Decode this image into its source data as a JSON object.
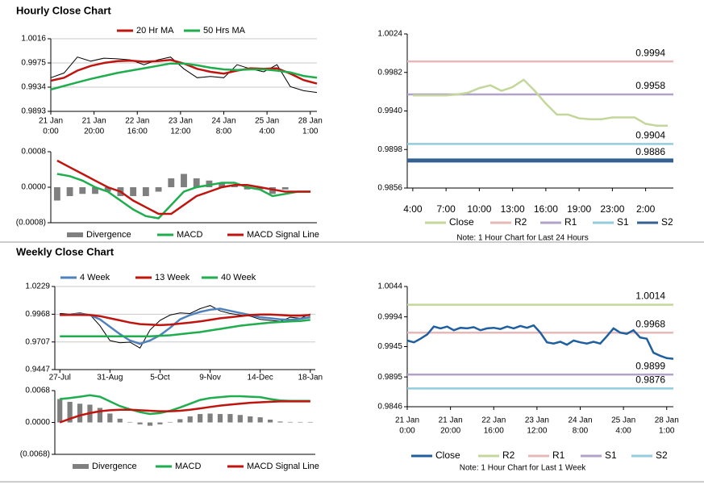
{
  "sections": [
    "Hourly Close Chart",
    "Weekly Close Chart"
  ],
  "chart_data": [
    {
      "type": "line",
      "grid": true,
      "xlim": [
        0,
        20
      ],
      "ylim": [
        0.9893,
        1.0016
      ],
      "yticks": [
        1.0016,
        0.9975,
        0.9934,
        0.9893
      ],
      "xticks": [
        {
          "value": 0,
          "label": [
            "21 Jan",
            "0:00"
          ]
        },
        {
          "value": 3.25,
          "label": [
            "21 Jan",
            "20:00"
          ]
        },
        {
          "value": 6.5,
          "label": [
            "22 Jan",
            "16:00"
          ]
        },
        {
          "value": 9.75,
          "label": [
            "23 Jan",
            "12:00"
          ]
        },
        {
          "value": 13,
          "label": [
            "24 Jan",
            "8:00"
          ]
        },
        {
          "value": 16.25,
          "label": [
            "25 Jan",
            "4:00"
          ]
        },
        {
          "value": 19.5,
          "label": [
            "28 Jan",
            "1:00"
          ]
        }
      ],
      "series": [
        {
          "color": "#000000",
          "values": [
            0.995,
            0.9958,
            0.9985,
            0.9978,
            0.9983,
            0.9982,
            0.998,
            0.9972,
            0.998,
            0.9985,
            0.9965,
            0.995,
            0.9952,
            0.995,
            0.9972,
            0.9965,
            0.996,
            0.9972,
            0.9935,
            0.9928,
            0.9925
          ]
        },
        {
          "name": "20 Hr MA",
          "color": "#c0140f",
          "values": [
            0.9945,
            0.995,
            0.9962,
            0.997,
            0.9975,
            0.9978,
            0.9979,
            0.9977,
            0.9978,
            0.998,
            0.9974,
            0.9965,
            0.996,
            0.9957,
            0.9962,
            0.9966,
            0.9965,
            0.9966,
            0.9957,
            0.9946,
            0.994
          ]
        },
        {
          "name": "50 Hrs MA",
          "color": "#1fad4e",
          "values": [
            0.993,
            0.9936,
            0.9942,
            0.9948,
            0.9953,
            0.9958,
            0.9962,
            0.9966,
            0.997,
            0.9974,
            0.9974,
            0.9971,
            0.9967,
            0.9964,
            0.9963,
            0.9964,
            0.9964,
            0.9962,
            0.9959,
            0.9953,
            0.995
          ]
        }
      ]
    },
    {
      "type": "combo",
      "grid": false,
      "ylim": [
        -0.0008,
        0.0008
      ],
      "yticks": [
        0.0008,
        {
          "value": 0,
          "label": "0.0000"
        },
        {
          "value": -0.0008,
          "label": "(0.0008)"
        }
      ],
      "series": [
        {
          "name": "Divergence",
          "type": "bar",
          "color": "#7f7f7f",
          "values": [
            -0.0003,
            -0.0002,
            -0.00015,
            -0.00015,
            -0.0001,
            -0.0002,
            -0.0002,
            -0.0002,
            -0.0001,
            0.0002,
            0.0003,
            0.0002,
            0.00015,
            0.0001,
            5e-05,
            -5e-05,
            -5e-05,
            -0.00015,
            -5e-05,
            0,
            0
          ]
        },
        {
          "name": "MACD",
          "type": "line",
          "color": "#1fad4e",
          "values": [
            0.0003,
            0.00025,
            0.00015,
            0,
            -0.0001,
            -0.0003,
            -0.0005,
            -0.00065,
            -0.0007,
            -0.0004,
            -0.0001,
            0,
            5e-05,
            0.0001,
            0.0001,
            0,
            -5e-05,
            -0.0002,
            -0.00015,
            -0.0001,
            -0.0001
          ]
        },
        {
          "name": "MACD Signal Line",
          "type": "line",
          "color": "#c0140f",
          "values": [
            0.0006,
            0.00045,
            0.0003,
            0.00015,
            0,
            -0.0001,
            -0.0003,
            -0.00045,
            -0.0006,
            -0.0006,
            -0.0004,
            -0.0002,
            -0.0001,
            0,
            5e-05,
            5e-05,
            0,
            -5e-05,
            -0.0001,
            -0.0001,
            -0.0001
          ]
        }
      ]
    },
    {
      "type": "line",
      "grid": false,
      "ylim": [
        0.9856,
        1.0024
      ],
      "yticks": [
        1.0024,
        0.9982,
        {
          "value": 0.994,
          "label": "0.9940"
        },
        0.9898,
        0.9856
      ],
      "categories": [
        "4:00",
        null,
        null,
        "7:00",
        null,
        null,
        "10:00",
        null,
        null,
        "13:00",
        null,
        null,
        "16:00",
        null,
        null,
        "19:00",
        null,
        null,
        "23:00",
        null,
        null,
        "2:00",
        null,
        null
      ],
      "series": [
        {
          "name": "Close",
          "color": "#c4d79b",
          "values": [
            0.9957,
            0.9957,
            0.9957,
            0.9957,
            0.9958,
            0.996,
            0.9965,
            0.9968,
            0.9962,
            0.9966,
            0.9974,
            0.9962,
            0.9948,
            0.9936,
            0.9936,
            0.9932,
            0.9931,
            0.9931,
            0.9933,
            0.9933,
            0.9933,
            0.9926,
            0.9924,
            0.9924
          ]
        }
      ],
      "levels": [
        {
          "name": "R2",
          "color": "#e6b9b8",
          "value": 0.9994
        },
        {
          "name": "R1",
          "color": "#b3a2c7",
          "value": 0.9958
        },
        {
          "name": "S1",
          "color": "#93cddd",
          "value": 0.9904
        },
        {
          "name": "S2",
          "color": "#376092",
          "value": 0.9886,
          "bold": true
        }
      ],
      "note": "Note: 1 Hour Chart for Last 24 Hours"
    },
    {
      "type": "line",
      "grid": true,
      "ylim": [
        0.9447,
        1.0229
      ],
      "yticks": [
        1.0229,
        0.9968,
        0.9707,
        0.9447
      ],
      "categories": [
        "27-Jul",
        null,
        null,
        null,
        null,
        "31-Aug",
        null,
        null,
        null,
        null,
        "5-Oct",
        null,
        null,
        null,
        null,
        "9-Nov",
        null,
        null,
        null,
        null,
        "14-Dec",
        null,
        null,
        null,
        null,
        "18-Jan"
      ],
      "series": [
        {
          "color": "#000000",
          "values": [
            0.9975,
            0.997,
            0.998,
            0.9965,
            0.986,
            0.972,
            0.97,
            0.9705,
            0.965,
            0.982,
            0.991,
            0.996,
            0.998,
            0.9975,
            1.002,
            1.005,
            1.0,
            0.9975,
            0.996,
            0.995,
            0.992,
            0.991,
            0.99,
            0.994,
            0.993,
            0.997
          ]
        },
        {
          "name": "4 Week",
          "color": "#4f81bd",
          "values": [
            0.996,
            0.9965,
            0.997,
            0.996,
            0.992,
            0.985,
            0.978,
            0.972,
            0.969,
            0.972,
            0.977,
            0.984,
            0.992,
            0.996,
            0.999,
            1.001,
            1.002,
            1.0,
            0.998,
            0.996,
            0.994,
            0.993,
            0.992,
            0.9915,
            0.9925,
            0.994
          ]
        },
        {
          "name": "13 Week",
          "color": "#c0140f",
          "values": [
            0.996,
            0.9962,
            0.9962,
            0.996,
            0.995,
            0.993,
            0.991,
            0.989,
            0.9875,
            0.987,
            0.9865,
            0.987,
            0.988,
            0.989,
            0.99,
            0.9915,
            0.993,
            0.994,
            0.995,
            0.996,
            0.9965,
            0.9965,
            0.996,
            0.9955,
            0.9955,
            0.996
          ]
        },
        {
          "name": "40 Week",
          "color": "#1fad4e",
          "values": [
            0.976,
            0.976,
            0.976,
            0.976,
            0.976,
            0.976,
            0.976,
            0.976,
            0.976,
            0.976,
            0.9765,
            0.977,
            0.978,
            0.979,
            0.98,
            0.9815,
            0.983,
            0.9845,
            0.986,
            0.987,
            0.988,
            0.989,
            0.9895,
            0.99,
            0.9905,
            0.9915
          ]
        }
      ]
    },
    {
      "type": "combo",
      "grid": false,
      "ylim": [
        -0.0068,
        0.0068
      ],
      "yticks": [
        0.0068,
        {
          "value": 0,
          "label": "0.0000"
        },
        {
          "value": -0.0068,
          "label": "(0.0068)"
        }
      ],
      "series": [
        {
          "name": "Divergence",
          "type": "bar",
          "color": "#7f7f7f",
          "values": [
            0.005,
            0.0044,
            0.004,
            0.0038,
            0.0031,
            0.0019,
            0.0008,
            0.0001,
            -0.0004,
            -0.0007,
            -0.0004,
            0.0001,
            0.0007,
            0.0013,
            0.0018,
            0.0019,
            0.0018,
            0.0018,
            0.0016,
            0.0013,
            0.0011,
            0.0006,
            0.0002,
            0.0001,
            0.0001,
            0.0001
          ]
        },
        {
          "name": "MACD",
          "type": "line",
          "color": "#1fad4e",
          "values": [
            0.005,
            0.0052,
            0.0055,
            0.0058,
            0.0055,
            0.0045,
            0.0035,
            0.0028,
            0.0022,
            0.0018,
            0.002,
            0.0025,
            0.0032,
            0.004,
            0.0048,
            0.0052,
            0.0054,
            0.0056,
            0.0056,
            0.0055,
            0.0054,
            0.005,
            0.0047,
            0.0046,
            0.0046,
            0.0046
          ]
        },
        {
          "name": "MACD Signal Line",
          "type": "line",
          "color": "#c0140f",
          "values": [
            0,
            0.0008,
            0.0015,
            0.002,
            0.0024,
            0.0026,
            0.0027,
            0.0027,
            0.0026,
            0.0025,
            0.0024,
            0.0024,
            0.0025,
            0.0027,
            0.003,
            0.0033,
            0.0036,
            0.0038,
            0.004,
            0.0042,
            0.0043,
            0.0044,
            0.0045,
            0.0045,
            0.0045,
            0.0045
          ]
        }
      ]
    },
    {
      "type": "line",
      "grid": false,
      "xlim": [
        0,
        40
      ],
      "ylim": [
        0.9846,
        1.0044
      ],
      "yticks": [
        1.0044,
        0.9994,
        0.9945,
        0.9895,
        0.9846
      ],
      "xticks": [
        {
          "value": 0,
          "label": [
            "21 Jan",
            "0:00"
          ]
        },
        {
          "value": 6.5,
          "label": [
            "21 Jan",
            "20:00"
          ]
        },
        {
          "value": 13,
          "label": [
            "22 Jan",
            "16:00"
          ]
        },
        {
          "value": 19.5,
          "label": [
            "23 Jan",
            "12:00"
          ]
        },
        {
          "value": 26,
          "label": [
            "24 Jan",
            "8:00"
          ]
        },
        {
          "value": 32.5,
          "label": [
            "25 Jan",
            "4:00"
          ]
        },
        {
          "value": 39,
          "label": [
            "28 Jan",
            "1:00"
          ]
        }
      ],
      "series": [
        {
          "name": "Close",
          "color": "#1f5fa0",
          "values": [
            0.9955,
            0.9952,
            0.9958,
            0.9965,
            0.9978,
            0.9975,
            0.9978,
            0.9972,
            0.9976,
            0.9975,
            0.9977,
            0.9972,
            0.9975,
            0.9976,
            0.9974,
            0.9978,
            0.9975,
            0.9979,
            0.9976,
            0.998,
            0.9968,
            0.9952,
            0.995,
            0.9953,
            0.9948,
            0.9955,
            0.9952,
            0.995,
            0.9953,
            0.995,
            0.9962,
            0.9975,
            0.9968,
            0.9966,
            0.9972,
            0.996,
            0.9958,
            0.9935,
            0.993,
            0.9926,
            0.9925
          ]
        }
      ],
      "levels": [
        {
          "name": "R2",
          "color": "#c4d79b",
          "value": 1.0014
        },
        {
          "name": "R1",
          "color": "#e6b9b8",
          "value": 0.9968
        },
        {
          "name": "S1",
          "color": "#b3a2c7",
          "value": 0.9899
        },
        {
          "name": "S2",
          "color": "#93cddd",
          "value": 0.9876
        }
      ],
      "note": "Note: 1 Hour Chart for Last 1 Week"
    }
  ]
}
